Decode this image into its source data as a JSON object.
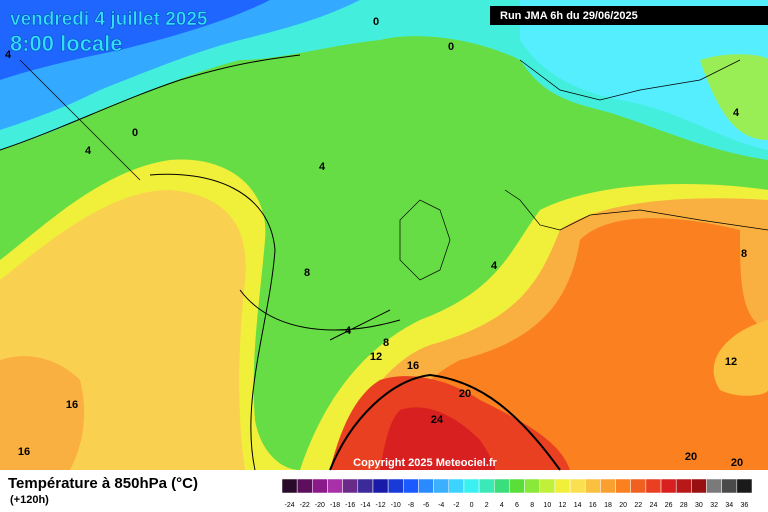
{
  "header": {
    "date": "vendredi 4 juillet 2025",
    "time": "8:00 locale",
    "run": "Run JMA 6h du 29/06/2025"
  },
  "map": {
    "contour_labels": [
      0,
      0,
      4,
      0,
      4,
      4,
      8,
      4,
      8,
      4,
      8,
      12,
      16,
      16,
      16,
      20,
      24,
      12,
      20,
      20,
      4
    ],
    "copyright": "Copyright 2025 Meteociel.fr"
  },
  "footer": {
    "title": "Température à 850hPa (°C)",
    "lead": "(+120h)"
  },
  "legend": {
    "ticks": [
      -24,
      -22,
      -20,
      -18,
      -16,
      -14,
      -12,
      -10,
      -8,
      -6,
      -4,
      -2,
      0,
      2,
      4,
      6,
      8,
      10,
      12,
      14,
      16,
      18,
      20,
      22,
      24,
      26,
      28,
      30,
      32,
      34,
      36
    ],
    "colors": [
      "#2a0a2a",
      "#5c0f5c",
      "#8a1a8a",
      "#a830a8",
      "#6a2a8a",
      "#3a2a9a",
      "#1a1aa8",
      "#1a3ad8",
      "#1a5aff",
      "#2a8aff",
      "#3ab0ff",
      "#3ad4ff",
      "#3af0f0",
      "#3ae8b8",
      "#3ade7a",
      "#5ade3a",
      "#8ae83a",
      "#c0f03a",
      "#f0f03a",
      "#fae050",
      "#fac040",
      "#faa030",
      "#fa8020",
      "#f06020",
      "#e84020",
      "#d82020",
      "#b81818",
      "#981010",
      "#7a7a7a",
      "#4a4a4a",
      "#1a1a1a"
    ]
  }
}
